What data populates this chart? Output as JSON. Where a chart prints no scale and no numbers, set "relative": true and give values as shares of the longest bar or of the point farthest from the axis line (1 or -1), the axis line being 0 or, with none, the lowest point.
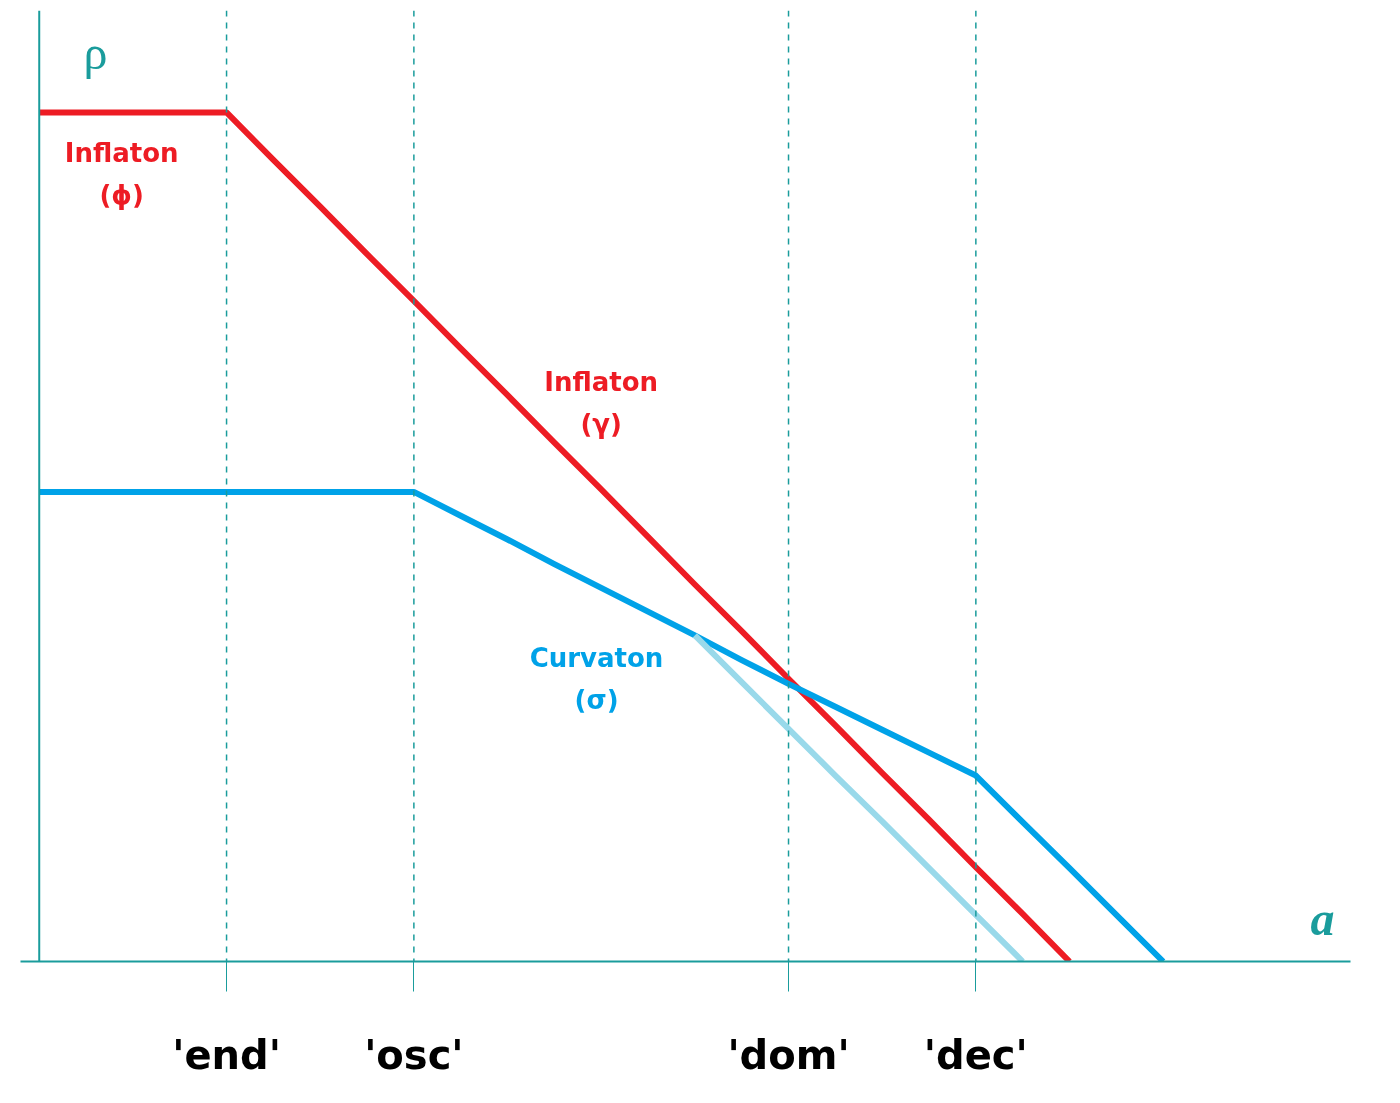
{
  "chart_data": {
    "type": "line",
    "relative": true,
    "xlabel": "a",
    "ylabel": "ρ",
    "categories": [
      null,
      null,
      null,
      null,
      "'end'",
      null,
      null,
      null,
      "'osc'",
      null,
      null,
      null,
      null,
      null,
      null,
      null,
      "'dom'",
      null,
      null,
      null,
      "'dec'",
      null,
      null,
      null,
      null,
      null,
      null,
      null,
      null
    ],
    "series": [
      {
        "color": "#ed1c24",
        "values": [
          1,
          1,
          1,
          1,
          1,
          0.944,
          0.889,
          0.833,
          0.778,
          0.722,
          0.667,
          0.611,
          0.556,
          0.5,
          0.444,
          0.389,
          0.333,
          0.278,
          0.222,
          0.167,
          0.111,
          0.056,
          0,
          null,
          null,
          null,
          null,
          null,
          null
        ]
      },
      {
        "color": "#00a2e8",
        "values": [
          0.553,
          0.553,
          0.553,
          0.553,
          0.553,
          0.553,
          0.553,
          0.553,
          0.553,
          0.525,
          0.497,
          0.468,
          0.44,
          0.412,
          0.384,
          0.355,
          0.327,
          0.3,
          0.273,
          0.246,
          0.219,
          0.164,
          0.11,
          0.055,
          0,
          null,
          null,
          null,
          null
        ]
      },
      {
        "color": "#99d9ea",
        "values": [
          null,
          null,
          null,
          null,
          null,
          null,
          null,
          null,
          null,
          null,
          null,
          null,
          null,
          null,
          0.384,
          0.329,
          0.274,
          0.219,
          0.165,
          0.11,
          0.055,
          0,
          null,
          null,
          null,
          null,
          null,
          null,
          null
        ]
      }
    ],
    "ref_lines": [
      {
        "axis": "x",
        "value": "'end'",
        "color": "#1a9c9c",
        "line_style": "dashed"
      },
      {
        "axis": "x",
        "value": "'osc'",
        "color": "#1a9c9c",
        "line_style": "dashed"
      },
      {
        "axis": "x",
        "value": "'dom'",
        "color": "#1a9c9c",
        "line_style": "dashed"
      },
      {
        "axis": "x",
        "value": "'dec'",
        "color": "#1a9c9c",
        "line_style": "dashed"
      }
    ],
    "annotations": [
      "Inflaton\n(ϕ)",
      "Inflaton\n(γ)",
      "Curvaton\n(σ)"
    ],
    "grid": false,
    "line_style": "solid",
    "marker": "none"
  }
}
